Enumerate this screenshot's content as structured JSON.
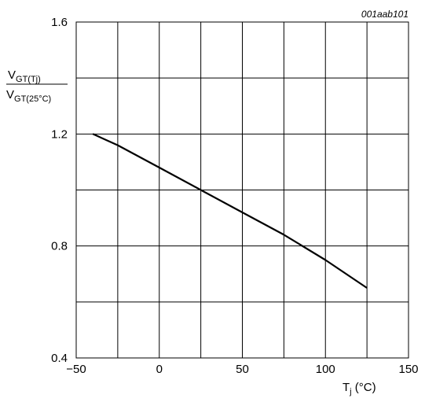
{
  "chart_data": {
    "type": "line",
    "figure_id": "001aab101",
    "xlabel": {
      "main": "T",
      "sub": "j",
      "unit": " (°C)"
    },
    "ylabel": {
      "numerator": {
        "main": "V",
        "sub": "GT(Tj)"
      },
      "denominator": {
        "main": "V",
        "sub": "GT(25°C)"
      }
    },
    "xlim": [
      -50,
      150
    ],
    "ylim": [
      0.4,
      1.6
    ],
    "x_ticks": [
      -50,
      0,
      50,
      100,
      150
    ],
    "x_tick_labels": [
      "−50",
      "0",
      "50",
      "100",
      "150"
    ],
    "y_ticks": [
      0.4,
      0.8,
      1.2,
      1.6
    ],
    "y_tick_labels": [
      "0.4",
      "0.8",
      "1.2",
      "1.6"
    ],
    "x_grid_step": 25,
    "y_grid_step": 0.2,
    "grid": true,
    "series": [
      {
        "x": [
          -40,
          -25,
          0,
          25,
          50,
          75,
          100,
          125
        ],
        "y": [
          1.2,
          1.16,
          1.08,
          1.0,
          0.92,
          0.84,
          0.75,
          0.65
        ]
      }
    ],
    "colors": {
      "line": "#000000",
      "grid": "#000000"
    }
  }
}
